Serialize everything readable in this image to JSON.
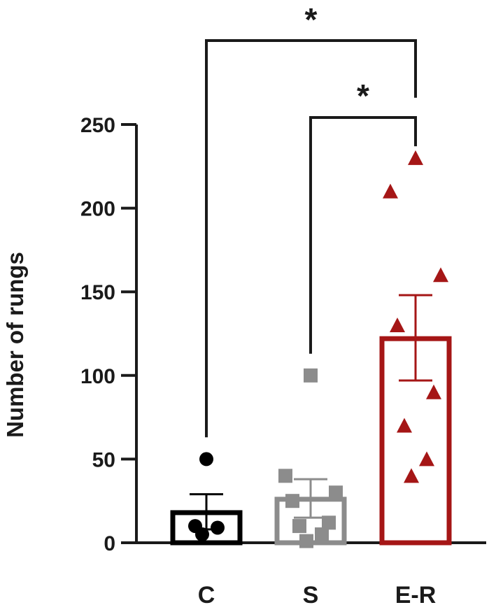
{
  "chart_data": {
    "type": "bar",
    "ylabel": "Number of rungs",
    "ylim": [
      0,
      250
    ],
    "yticks": [
      0,
      50,
      100,
      150,
      200,
      250
    ],
    "grid": false,
    "categories": [
      "C",
      "S",
      "E-R"
    ],
    "series": [
      {
        "category": "C",
        "mean": 18,
        "sem": [
          8,
          29
        ],
        "points": [
          5,
          9,
          10,
          50
        ],
        "marker": "circle",
        "color": "#000000"
      },
      {
        "category": "S",
        "mean": 26,
        "sem": [
          15,
          38
        ],
        "points": [
          1,
          5,
          10,
          12,
          25,
          30,
          40,
          100
        ],
        "marker": "square",
        "color": "#8c8c8c"
      },
      {
        "category": "E-R",
        "mean": 122,
        "sem": [
          97,
          148
        ],
        "points": [
          40,
          50,
          70,
          90,
          130,
          160,
          210,
          230
        ],
        "marker": "triangle",
        "color": "#a51616"
      }
    ],
    "significance": [
      {
        "from": "C",
        "to": "E-R",
        "label": "*"
      },
      {
        "from": "S",
        "to": "E-R",
        "label": "*"
      }
    ]
  }
}
